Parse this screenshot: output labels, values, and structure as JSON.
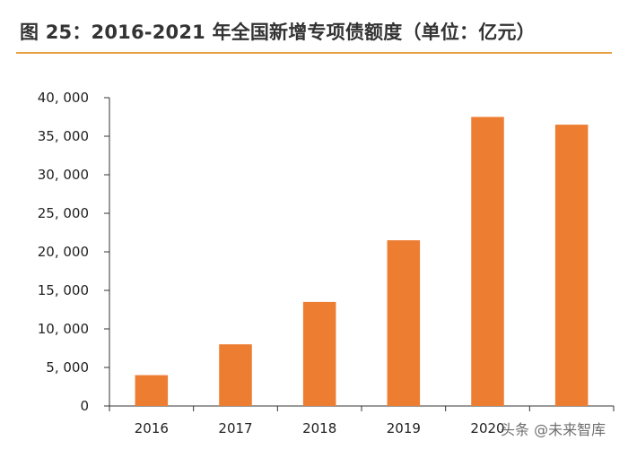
{
  "title": "图 25：2016-2021 年全国新增专项债额度（单位：亿元）",
  "watermark": {
    "text": "头条 @未来智库",
    "icon": "wechat-icon"
  },
  "colors": {
    "bar": "#ed7d31",
    "axis": "#333333",
    "title_rule": "#e8a045"
  },
  "chart_data": {
    "type": "bar",
    "title": "图 25：2016-2021 年全国新增专项债额度（单位：亿元）",
    "xlabel": "",
    "ylabel": "",
    "categories": [
      "2016",
      "2017",
      "2018",
      "2019",
      "2020",
      ""
    ],
    "values": [
      4000,
      8000,
      13500,
      21500,
      37500,
      36500
    ],
    "ylim": [
      0,
      40000
    ],
    "yticks": [
      0,
      5000,
      10000,
      15000,
      20000,
      25000,
      30000,
      35000,
      40000
    ],
    "ytick_labels": [
      "0",
      "5, 000",
      "10, 000",
      "15, 000",
      "20, 000",
      "25, 000",
      "30, 000",
      "35, 000",
      "40, 000"
    ],
    "grid": false,
    "legend": "none"
  }
}
